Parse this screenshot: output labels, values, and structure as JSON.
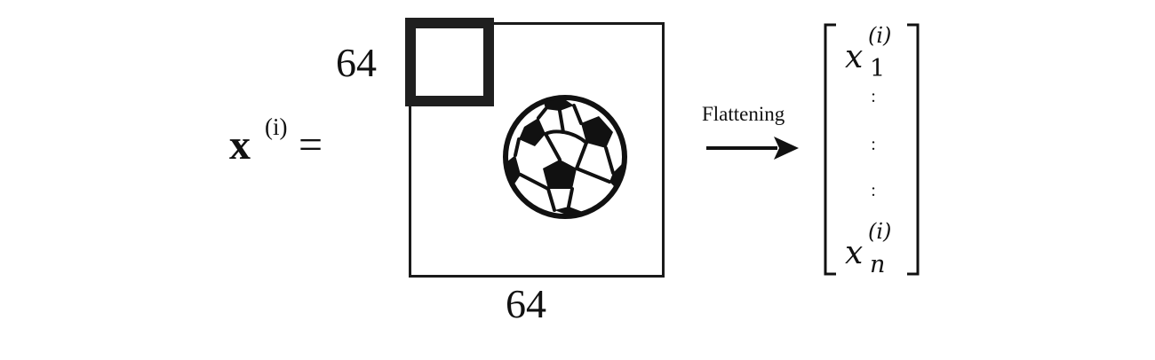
{
  "equation": {
    "lhs_symbol": "x",
    "lhs_superscript": "(i)",
    "equals": "="
  },
  "image": {
    "height_label": "64",
    "width_label": "64",
    "icon": "soccer-ball-icon"
  },
  "flatten": {
    "label": "Flattening"
  },
  "vector": {
    "first": {
      "base": "x",
      "superscript": "(i)",
      "subscript": "1"
    },
    "dots": [
      ":",
      ":",
      ":"
    ],
    "last": {
      "base": "x",
      "superscript": "(i)",
      "subscript": "n"
    }
  }
}
